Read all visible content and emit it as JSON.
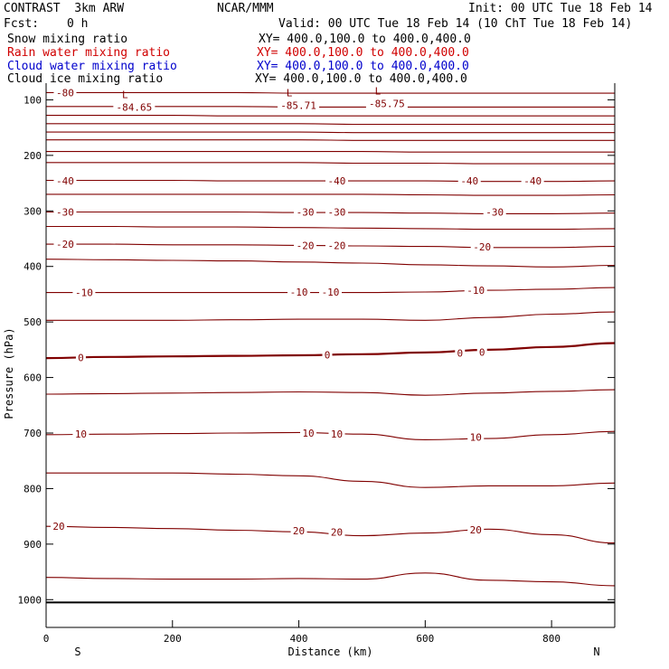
{
  "header": {
    "left_title": "CONTRAST  3km ARW",
    "center_title": "NCAR/MMM",
    "init": "Init: 00 UTC Tue 18 Feb 14",
    "fcst_label": "Fcst:",
    "fcst_value": "0 h",
    "valid": "Valid: 00 UTC Tue 18 Feb 14 (10 ChT Tue 18 Feb 14)"
  },
  "fields": [
    {
      "name": "Snow mixing ratio",
      "xy": "XY= 400.0,100.0 to 400.0,400.0",
      "color": "#000000"
    },
    {
      "name": "Rain water mixing ratio",
      "xy": "XY= 400.0,100.0 to 400.0,400.0",
      "color": "#d00000"
    },
    {
      "name": "Cloud water mixing ratio",
      "xy": "XY= 400.0,100.0 to 400.0,400.0",
      "color": "#0000cc"
    },
    {
      "name": "Cloud ice mixing ratio",
      "xy": "XY= 400.0,100.0 to 400.0,400.0",
      "color": "#000000"
    }
  ],
  "chart_data": {
    "type": "contour",
    "xlabel": "Distance (km)",
    "ylabel": "Pressure (hPa)",
    "xlim": [
      0,
      900
    ],
    "ylim": [
      1050,
      70
    ],
    "x_ticks": [
      "0",
      "200",
      "400",
      "600",
      "800"
    ],
    "x_tick_values": [
      0,
      200,
      400,
      600,
      800
    ],
    "y_ticks": [
      "100",
      "200",
      "300",
      "400",
      "500",
      "600",
      "700",
      "800",
      "900",
      "1000"
    ],
    "y_tick_values": [
      100,
      200,
      300,
      400,
      500,
      600,
      700,
      800,
      900,
      1000
    ],
    "endpoints": [
      "S",
      "N"
    ],
    "contour_color": "#800000",
    "ground_pressure": 1005,
    "contours": [
      {
        "value": -80,
        "pressure": [
          87,
          87,
          87,
          87,
          88,
          88,
          88,
          88,
          88,
          88
        ]
      },
      {
        "value": -75,
        "pressure": [
          112,
          112,
          112,
          112,
          113,
          113,
          113,
          113,
          113,
          113
        ]
      },
      {
        "value": -70,
        "pressure": [
          128,
          128,
          128,
          129,
          129,
          129,
          129,
          129,
          129,
          129
        ]
      },
      {
        "value": -65,
        "pressure": [
          143,
          143,
          143,
          143,
          143,
          144,
          144,
          144,
          144,
          144
        ]
      },
      {
        "value": -60,
        "pressure": [
          158,
          158,
          158,
          158,
          158,
          159,
          159,
          159,
          159,
          159
        ]
      },
      {
        "value": -55,
        "pressure": [
          172,
          172,
          172,
          172,
          172,
          173,
          173,
          173,
          173,
          173
        ]
      },
      {
        "value": -50,
        "pressure": [
          193,
          193,
          193,
          193,
          193,
          193,
          194,
          194,
          194,
          194
        ]
      },
      {
        "value": -45,
        "pressure": [
          213,
          213,
          213,
          213,
          213,
          214,
          214,
          215,
          215,
          215
        ]
      },
      {
        "value": -40,
        "pressure": [
          245,
          245,
          245,
          246,
          246,
          246,
          246,
          247,
          247,
          246
        ]
      },
      {
        "value": -35,
        "pressure": [
          270,
          270,
          270,
          270,
          270,
          270,
          271,
          272,
          272,
          271
        ]
      },
      {
        "value": -30,
        "pressure": [
          302,
          302,
          302,
          302,
          303,
          303,
          304,
          305,
          305,
          304
        ]
      },
      {
        "value": -25,
        "pressure": [
          328,
          328,
          329,
          329,
          330,
          331,
          332,
          333,
          333,
          332
        ]
      },
      {
        "value": -20,
        "pressure": [
          360,
          360,
          361,
          361,
          362,
          363,
          364,
          366,
          366,
          364
        ]
      },
      {
        "value": -15,
        "pressure": [
          387,
          388,
          389,
          390,
          392,
          394,
          397,
          399,
          401,
          398
        ]
      },
      {
        "value": -10,
        "pressure": [
          447,
          447,
          447,
          447,
          447,
          447,
          446,
          443,
          441,
          438
        ]
      },
      {
        "value": -5,
        "pressure": [
          497,
          497,
          497,
          496,
          495,
          495,
          497,
          492,
          486,
          482
        ]
      },
      {
        "value": 0,
        "pressure": [
          565,
          563,
          562,
          561,
          560,
          558,
          555,
          550,
          545,
          538
        ]
      },
      {
        "value": 5,
        "pressure": [
          630,
          629,
          628,
          627,
          626,
          627,
          632,
          628,
          625,
          622
        ]
      },
      {
        "value": 10,
        "pressure": [
          703,
          702,
          701,
          700,
          699,
          702,
          712,
          710,
          703,
          697
        ]
      },
      {
        "value": 15,
        "pressure": [
          772,
          772,
          772,
          774,
          777,
          787,
          798,
          795,
          795,
          790
        ]
      },
      {
        "value": 20,
        "pressure": [
          868,
          870,
          872,
          875,
          878,
          885,
          880,
          873,
          883,
          898
        ]
      },
      {
        "value": 25,
        "pressure": [
          960,
          962,
          963,
          963,
          962,
          963,
          952,
          965,
          968,
          975
        ]
      }
    ],
    "contour_labels": [
      {
        "text": "-80",
        "x": 30,
        "p": 87
      },
      {
        "text": "-40",
        "x": 30,
        "p": 246
      },
      {
        "text": "-40",
        "x": 460,
        "p": 246
      },
      {
        "text": "-40",
        "x": 670,
        "p": 246
      },
      {
        "text": "-40",
        "x": 770,
        "p": 246
      },
      {
        "text": "-30",
        "x": 30,
        "p": 302
      },
      {
        "text": "-30",
        "x": 410,
        "p": 302
      },
      {
        "text": "-30",
        "x": 460,
        "p": 302
      },
      {
        "text": "-30",
        "x": 710,
        "p": 302
      },
      {
        "text": "-20",
        "x": 30,
        "p": 360
      },
      {
        "text": "-20",
        "x": 410,
        "p": 362
      },
      {
        "text": "-20",
        "x": 460,
        "p": 362
      },
      {
        "text": "-20",
        "x": 690,
        "p": 365
      },
      {
        "text": "-10",
        "x": 60,
        "p": 447
      },
      {
        "text": "-10",
        "x": 400,
        "p": 446
      },
      {
        "text": "-10",
        "x": 450,
        "p": 446
      },
      {
        "text": "-10",
        "x": 680,
        "p": 443
      },
      {
        "text": "0",
        "x": 55,
        "p": 564
      },
      {
        "text": "0",
        "x": 445,
        "p": 559
      },
      {
        "text": "0",
        "x": 655,
        "p": 556
      },
      {
        "text": "0",
        "x": 690,
        "p": 554
      },
      {
        "text": "10",
        "x": 55,
        "p": 702
      },
      {
        "text": "10",
        "x": 415,
        "p": 700
      },
      {
        "text": "10",
        "x": 460,
        "p": 702
      },
      {
        "text": "10",
        "x": 680,
        "p": 707
      },
      {
        "text": "20",
        "x": 20,
        "p": 868
      },
      {
        "text": "20",
        "x": 400,
        "p": 876
      },
      {
        "text": "20",
        "x": 460,
        "p": 878
      },
      {
        "text": "20",
        "x": 680,
        "p": 874
      }
    ],
    "lows": [
      {
        "symbol": "L",
        "label": "-84.65",
        "x": 125,
        "p": 100
      },
      {
        "symbol": "L",
        "label": "-85.71",
        "x": 385,
        "p": 97
      },
      {
        "symbol": "L",
        "label": "-85.75",
        "x": 525,
        "p": 94
      }
    ]
  }
}
